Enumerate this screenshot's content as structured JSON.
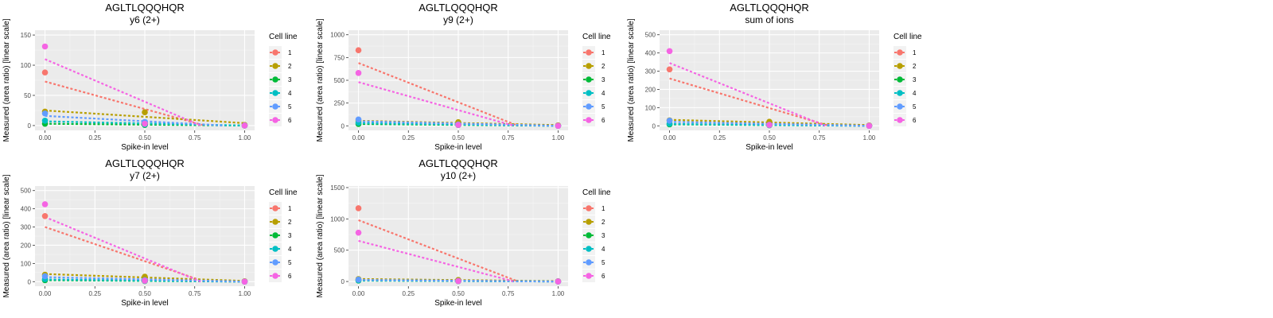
{
  "chart_data": [
    {
      "type": "scatter",
      "title": "AGLTLQQQHQR",
      "subtitle": "y6 (2+)",
      "xlabel": "Spike-in level",
      "ylabel": "Measured (area ratio) [linear scale]",
      "xlim": [
        -0.05,
        1.05
      ],
      "ylim": [
        -8,
        158
      ],
      "xticks": [
        0,
        0.25,
        0.5,
        0.75,
        1
      ],
      "xtick_labels": [
        "0.00",
        "0.25",
        "0.50",
        "0.75",
        "1.00"
      ],
      "yticks": [
        0,
        50,
        100,
        150
      ],
      "ytick_labels": [
        "0",
        "50",
        "100",
        "150"
      ],
      "legend_title": "Cell line",
      "legend_position": "right",
      "grid": true,
      "series": [
        {
          "name": "1",
          "color": "#F8766D",
          "points": [
            [
              0,
              88
            ],
            [
              0.5,
              5
            ],
            [
              1,
              0
            ]
          ],
          "fit": [
            [
              0,
              73
            ],
            [
              0.8,
              0
            ]
          ]
        },
        {
          "name": "2",
          "color": "#B79F00",
          "points": [
            [
              0,
              23
            ],
            [
              0.5,
              22
            ],
            [
              1,
              1
            ]
          ],
          "fit": [
            [
              0,
              25
            ],
            [
              1,
              4
            ]
          ]
        },
        {
          "name": "3",
          "color": "#00BA38",
          "points": [
            [
              0,
              3
            ],
            [
              0.5,
              1
            ],
            [
              1,
              0
            ]
          ],
          "fit": [
            [
              0,
              3
            ],
            [
              1,
              0
            ]
          ]
        },
        {
          "name": "4",
          "color": "#00BFC4",
          "points": [
            [
              0,
              8
            ],
            [
              0.5,
              2
            ],
            [
              1,
              0
            ]
          ],
          "fit": [
            [
              0,
              7
            ],
            [
              1,
              0
            ]
          ]
        },
        {
          "name": "5",
          "color": "#619CFF",
          "points": [
            [
              0,
              20
            ],
            [
              0.5,
              6
            ],
            [
              1,
              0
            ]
          ],
          "fit": [
            [
              0,
              16
            ],
            [
              0.9,
              0
            ]
          ]
        },
        {
          "name": "6",
          "color": "#F564E3",
          "points": [
            [
              0,
              131
            ],
            [
              0.5,
              3
            ],
            [
              1,
              0
            ]
          ],
          "fit": [
            [
              0,
              110
            ],
            [
              0.78,
              0
            ]
          ]
        }
      ]
    },
    {
      "type": "scatter",
      "title": "AGLTLQQQHQR",
      "subtitle": "y9 (2+)",
      "xlabel": "Spike-in level",
      "ylabel": "Measured (area ratio) [linear scale]",
      "xlim": [
        -0.05,
        1.05
      ],
      "ylim": [
        -50,
        1050
      ],
      "xticks": [
        0,
        0.25,
        0.5,
        0.75,
        1
      ],
      "xtick_labels": [
        "0.00",
        "0.25",
        "0.50",
        "0.75",
        "1.00"
      ],
      "yticks": [
        0,
        250,
        500,
        750,
        1000
      ],
      "ytick_labels": [
        "0",
        "250",
        "500",
        "750",
        "1000"
      ],
      "legend_title": "Cell line",
      "legend_position": "right",
      "grid": true,
      "series": [
        {
          "name": "1",
          "color": "#F8766D",
          "points": [
            [
              0,
              830
            ],
            [
              0.5,
              10
            ],
            [
              1,
              0
            ]
          ],
          "fit": [
            [
              0,
              690
            ],
            [
              0.8,
              0
            ]
          ]
        },
        {
          "name": "2",
          "color": "#B79F00",
          "points": [
            [
              0,
              55
            ],
            [
              0.5,
              40
            ],
            [
              1,
              5
            ]
          ],
          "fit": [
            [
              0,
              55
            ],
            [
              1,
              8
            ]
          ]
        },
        {
          "name": "3",
          "color": "#00BA38",
          "points": [
            [
              0,
              20
            ],
            [
              0.5,
              10
            ],
            [
              1,
              0
            ]
          ],
          "fit": [
            [
              0,
              20
            ],
            [
              1,
              0
            ]
          ]
        },
        {
          "name": "4",
          "color": "#00BFC4",
          "points": [
            [
              0,
              35
            ],
            [
              0.5,
              10
            ],
            [
              1,
              0
            ]
          ],
          "fit": [
            [
              0,
              30
            ],
            [
              1,
              0
            ]
          ]
        },
        {
          "name": "5",
          "color": "#619CFF",
          "points": [
            [
              0,
              70
            ],
            [
              0.5,
              15
            ],
            [
              1,
              0
            ]
          ],
          "fit": [
            [
              0,
              50
            ],
            [
              1,
              0
            ]
          ]
        },
        {
          "name": "6",
          "color": "#F564E3",
          "points": [
            [
              0,
              580
            ],
            [
              0.5,
              10
            ],
            [
              1,
              0
            ]
          ],
          "fit": [
            [
              0,
              480
            ],
            [
              0.78,
              0
            ]
          ]
        }
      ]
    },
    {
      "type": "scatter",
      "title": "AGLTLQQQHQR",
      "subtitle": "sum of ions",
      "xlabel": "Spike-in level",
      "ylabel": "Measured (area ratio) [linear scale]",
      "xlim": [
        -0.05,
        1.05
      ],
      "ylim": [
        -25,
        525
      ],
      "xticks": [
        0,
        0.25,
        0.5,
        0.75,
        1
      ],
      "xtick_labels": [
        "0.00",
        "0.25",
        "0.50",
        "0.75",
        "1.00"
      ],
      "yticks": [
        0,
        100,
        200,
        300,
        400,
        500
      ],
      "ytick_labels": [
        "0",
        "100",
        "200",
        "300",
        "400",
        "500"
      ],
      "legend_title": "Cell line",
      "legend_position": "right",
      "grid": true,
      "series": [
        {
          "name": "1",
          "color": "#F8766D",
          "points": [
            [
              0,
              310
            ],
            [
              0.5,
              8
            ],
            [
              1,
              0
            ]
          ],
          "fit": [
            [
              0,
              260
            ],
            [
              0.8,
              0
            ]
          ]
        },
        {
          "name": "2",
          "color": "#B79F00",
          "points": [
            [
              0,
              30
            ],
            [
              0.5,
              22
            ],
            [
              1,
              2
            ]
          ],
          "fit": [
            [
              0,
              33
            ],
            [
              1,
              4
            ]
          ]
        },
        {
          "name": "3",
          "color": "#00BA38",
          "points": [
            [
              0,
              8
            ],
            [
              0.5,
              3
            ],
            [
              1,
              0
            ]
          ],
          "fit": [
            [
              0,
              8
            ],
            [
              1,
              0
            ]
          ]
        },
        {
          "name": "4",
          "color": "#00BFC4",
          "points": [
            [
              0,
              12
            ],
            [
              0.5,
              4
            ],
            [
              1,
              0
            ]
          ],
          "fit": [
            [
              0,
              10
            ],
            [
              1,
              0
            ]
          ]
        },
        {
          "name": "5",
          "color": "#619CFF",
          "points": [
            [
              0,
              28
            ],
            [
              0.5,
              6
            ],
            [
              1,
              0
            ]
          ],
          "fit": [
            [
              0,
              22
            ],
            [
              1,
              0
            ]
          ]
        },
        {
          "name": "6",
          "color": "#F564E3",
          "points": [
            [
              0,
              410
            ],
            [
              0.5,
              5
            ],
            [
              1,
              0
            ]
          ],
          "fit": [
            [
              0,
              345
            ],
            [
              0.78,
              0
            ]
          ]
        }
      ]
    },
    {
      "type": "scatter",
      "title": "AGLTLQQQHQR",
      "subtitle": "y7 (2+)",
      "xlabel": "Spike-in level",
      "ylabel": "Measured (area ratio) [linear scale]",
      "xlim": [
        -0.05,
        1.05
      ],
      "ylim": [
        -25,
        525
      ],
      "xticks": [
        0,
        0.25,
        0.5,
        0.75,
        1
      ],
      "xtick_labels": [
        "0.00",
        "0.25",
        "0.50",
        "0.75",
        "1.00"
      ],
      "yticks": [
        0,
        100,
        200,
        300,
        400,
        500
      ],
      "ytick_labels": [
        "0",
        "100",
        "200",
        "300",
        "400",
        "500"
      ],
      "legend_title": "Cell line",
      "legend_position": "right",
      "grid": true,
      "series": [
        {
          "name": "1",
          "color": "#F8766D",
          "points": [
            [
              0,
              360
            ],
            [
              0.5,
              8
            ],
            [
              1,
              0
            ]
          ],
          "fit": [
            [
              0,
              300
            ],
            [
              0.8,
              0
            ]
          ]
        },
        {
          "name": "2",
          "color": "#B79F00",
          "points": [
            [
              0,
              38
            ],
            [
              0.5,
              27
            ],
            [
              1,
              2
            ]
          ],
          "fit": [
            [
              0,
              42
            ],
            [
              1,
              4
            ]
          ]
        },
        {
          "name": "3",
          "color": "#00BA38",
          "points": [
            [
              0,
              8
            ],
            [
              0.5,
              3
            ],
            [
              1,
              0
            ]
          ],
          "fit": [
            [
              0,
              8
            ],
            [
              1,
              0
            ]
          ]
        },
        {
          "name": "4",
          "color": "#00BFC4",
          "points": [
            [
              0,
              14
            ],
            [
              0.5,
              4
            ],
            [
              1,
              0
            ]
          ],
          "fit": [
            [
              0,
              12
            ],
            [
              1,
              0
            ]
          ]
        },
        {
          "name": "5",
          "color": "#619CFF",
          "points": [
            [
              0,
              30
            ],
            [
              0.5,
              8
            ],
            [
              1,
              0
            ]
          ],
          "fit": [
            [
              0,
              25
            ],
            [
              1,
              0
            ]
          ]
        },
        {
          "name": "6",
          "color": "#F564E3",
          "points": [
            [
              0,
              425
            ],
            [
              0.5,
              5
            ],
            [
              1,
              0
            ]
          ],
          "fit": [
            [
              0,
              355
            ],
            [
              0.78,
              0
            ]
          ]
        }
      ]
    },
    {
      "type": "scatter",
      "title": "AGLTLQQQHQR",
      "subtitle": "y10 (2+)",
      "xlabel": "Spike-in level",
      "ylabel": "Measured (area ratio) [linear scale]",
      "xlim": [
        -0.05,
        1.05
      ],
      "ylim": [
        -75,
        1525
      ],
      "xticks": [
        0,
        0.25,
        0.5,
        0.75,
        1
      ],
      "xtick_labels": [
        "0.00",
        "0.25",
        "0.50",
        "0.75",
        "1.00"
      ],
      "yticks": [
        0,
        500,
        1000,
        1500
      ],
      "ytick_labels": [
        "0",
        "500",
        "1000",
        "1500"
      ],
      "legend_title": "Cell line",
      "legend_position": "right",
      "grid": true,
      "series": [
        {
          "name": "1",
          "color": "#F8766D",
          "points": [
            [
              0,
              1170
            ],
            [
              0.5,
              10
            ],
            [
              1,
              0
            ]
          ],
          "fit": [
            [
              0,
              980
            ],
            [
              0.8,
              0
            ]
          ]
        },
        {
          "name": "2",
          "color": "#B79F00",
          "points": [
            [
              0,
              38
            ],
            [
              0.5,
              25
            ],
            [
              1,
              4
            ]
          ],
          "fit": [
            [
              0,
              40
            ],
            [
              1,
              6
            ]
          ]
        },
        {
          "name": "3",
          "color": "#00BA38",
          "points": [
            [
              0,
              15
            ],
            [
              0.5,
              5
            ],
            [
              1,
              0
            ]
          ],
          "fit": [
            [
              0,
              14
            ],
            [
              1,
              0
            ]
          ]
        },
        {
          "name": "4",
          "color": "#00BFC4",
          "points": [
            [
              0,
              20
            ],
            [
              0.5,
              6
            ],
            [
              1,
              0
            ]
          ],
          "fit": [
            [
              0,
              18
            ],
            [
              1,
              0
            ]
          ]
        },
        {
          "name": "5",
          "color": "#619CFF",
          "points": [
            [
              0,
              30
            ],
            [
              0.5,
              8
            ],
            [
              1,
              0
            ]
          ],
          "fit": [
            [
              0,
              25
            ],
            [
              1,
              0
            ]
          ]
        },
        {
          "name": "6",
          "color": "#F564E3",
          "points": [
            [
              0,
              780
            ],
            [
              0.5,
              6
            ],
            [
              1,
              0
            ]
          ],
          "fit": [
            [
              0,
              650
            ],
            [
              0.78,
              0
            ]
          ]
        }
      ]
    }
  ]
}
